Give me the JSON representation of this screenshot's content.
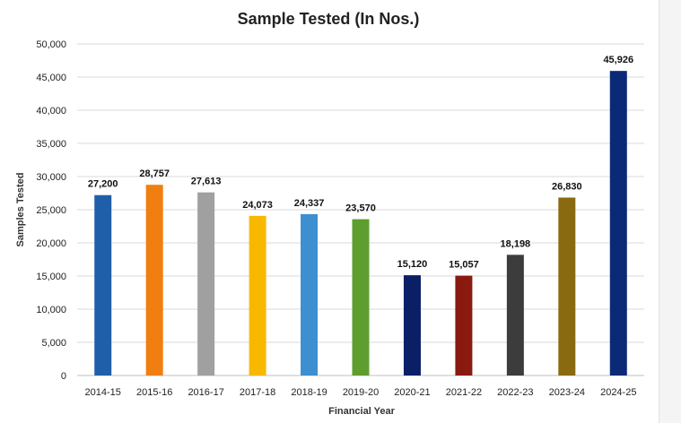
{
  "chart_data": {
    "type": "bar",
    "title": "Sample Tested (In Nos.)",
    "xlabel": "Financial Year",
    "ylabel": "Samples Tested",
    "categories": [
      "2014-15",
      "2015-16",
      "2016-17",
      "2017-18",
      "2018-19",
      "2019-20",
      "2020-21",
      "2021-22",
      "2022-23",
      "2023-24",
      "2024-25"
    ],
    "values": [
      27200,
      28757,
      27613,
      24073,
      24337,
      23570,
      15120,
      15057,
      18198,
      26830,
      45926
    ],
    "value_labels": [
      "27,200",
      "28,757",
      "27,613",
      "24,073",
      "24,337",
      "23,570",
      "15,120",
      "15,057",
      "18,198",
      "26,830",
      "45,926"
    ],
    "colors": [
      "#1f5faa",
      "#f07f10",
      "#a0a0a0",
      "#f8b800",
      "#3d8fd0",
      "#5e9e2e",
      "#0a1f66",
      "#8a1a10",
      "#3c3c3c",
      "#8a6a10",
      "#0a2a78"
    ],
    "ylim": [
      0,
      50000
    ],
    "yticks": [
      "0",
      "5,000",
      "10,000",
      "15,000",
      "20,000",
      "25,000",
      "30,000",
      "35,000",
      "40,000",
      "45,000",
      "50,000"
    ],
    "ytick_values": [
      0,
      5000,
      10000,
      15000,
      20000,
      25000,
      30000,
      35000,
      40000,
      45000,
      50000
    ],
    "grid": true,
    "legend": "none"
  }
}
